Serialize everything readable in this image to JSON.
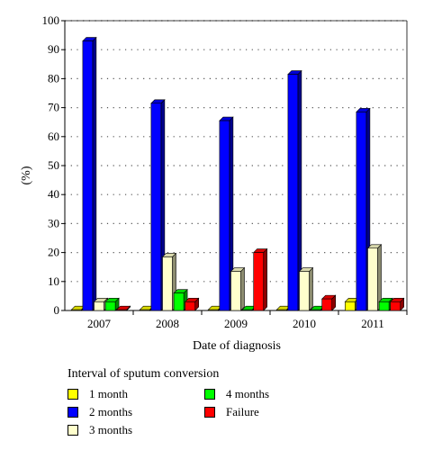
{
  "chart_data": {
    "type": "bar",
    "title": "",
    "xlabel": "Date of diagnosis",
    "ylabel": "(%)",
    "ylim": [
      0,
      100
    ],
    "yticks": [
      "0",
      "10",
      "20",
      "30",
      "40",
      "50",
      "60",
      "70",
      "80",
      "90",
      "100"
    ],
    "categories": [
      "2007",
      "2008",
      "2009",
      "2010",
      "2011"
    ],
    "legend_title": "Interval of sputum conversion",
    "grid": "dotted horizontal",
    "style": "3d",
    "series": [
      {
        "name": "1 month",
        "color": "#ffff00",
        "values": [
          0,
          0,
          0,
          0,
          3
        ]
      },
      {
        "name": "2 months",
        "color": "#0000ff",
        "values": [
          93,
          71.5,
          65.5,
          81.5,
          68.5
        ]
      },
      {
        "name": "3 months",
        "color": "#ffffcc",
        "values": [
          3,
          18.5,
          13.5,
          13.5,
          21.5
        ]
      },
      {
        "name": "4 months",
        "color": "#00ff00",
        "values": [
          3,
          6,
          0,
          0,
          3
        ]
      },
      {
        "name": "Failure",
        "color": "#ff0000",
        "values": [
          0,
          3,
          20,
          4,
          3
        ]
      }
    ]
  }
}
